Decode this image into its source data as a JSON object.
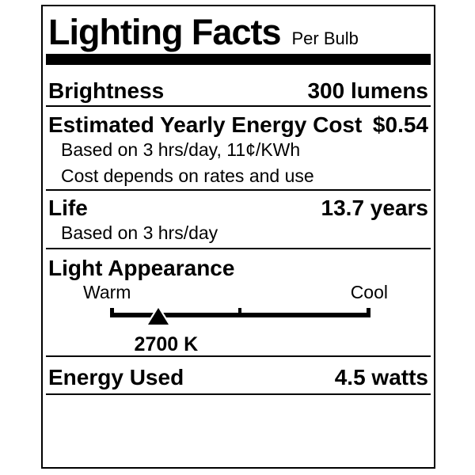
{
  "colors": {
    "ink": "#000000",
    "paper": "#ffffff"
  },
  "label": {
    "title": "Lighting Facts",
    "subtitle": "Per Bulb",
    "brightness": {
      "name": "Brightness",
      "value": "300 lumens"
    },
    "energy_cost": {
      "name": "Estimated Yearly Energy Cost",
      "value": "$0.54",
      "notes": [
        "Based on 3 hrs/day, 11¢/KWh",
        "Cost depends on rates and use"
      ]
    },
    "life": {
      "name": "Life",
      "value": "13.7 years",
      "notes": [
        "Based on 3 hrs/day"
      ]
    },
    "light_appearance": {
      "name": "Light Appearance",
      "scale_min_label": "Warm",
      "scale_max_label": "Cool",
      "marker_value": "2700 K",
      "marker_position_pct": 18.5
    },
    "energy_used": {
      "name": "Energy Used",
      "value": "4.5 watts"
    }
  }
}
